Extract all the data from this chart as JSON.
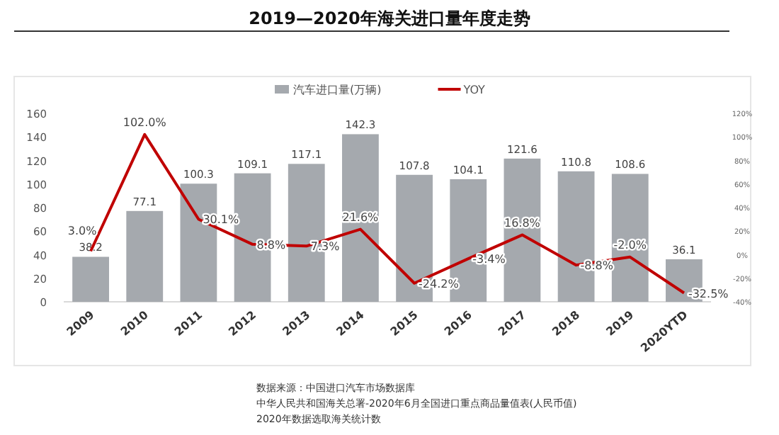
{
  "chart_data": {
    "type": "bar",
    "title": "2019—2020年海关进口量年度走势",
    "categories": [
      "2009",
      "2010",
      "2011",
      "2012",
      "2013",
      "2014",
      "2015",
      "2016",
      "2017",
      "2018",
      "2019",
      "2020YTD"
    ],
    "series": [
      {
        "name": "汽车进口量(万辆)",
        "type": "bar",
        "color": "#a5a9ae",
        "values": [
          38.2,
          77.1,
          100.3,
          109.1,
          117.1,
          142.3,
          107.8,
          104.1,
          121.6,
          110.8,
          108.6,
          36.1
        ],
        "value_labels": [
          "38.2",
          "77.1",
          "100.3",
          "109.1",
          "117.1",
          "142.3",
          "107.8",
          "104.1",
          "121.6",
          "110.8",
          "108.6",
          "36.1"
        ]
      },
      {
        "name": "YOY",
        "type": "line",
        "axis": "y2",
        "color": "#c00000",
        "values": [
          3.0,
          102.0,
          30.1,
          8.8,
          7.3,
          21.6,
          -24.2,
          -3.4,
          16.8,
          -8.8,
          -2.0,
          -32.5
        ],
        "value_labels": [
          "3.0%",
          "102.0%",
          "30.1%",
          "8.8%",
          "7.3%",
          "21.6%",
          "-24.2%",
          "-3.4%",
          "16.8%",
          "-8.8%",
          "-2.0%",
          "-32.5%"
        ]
      }
    ],
    "ylim": [
      0,
      160
    ],
    "yticks": [
      0,
      20,
      40,
      60,
      80,
      100,
      120,
      140,
      160
    ],
    "y2lim": [
      -40,
      120
    ],
    "y2ticks": [
      {
        "value": -40,
        "label": "-40%"
      },
      {
        "value": -20,
        "label": "-20%"
      },
      {
        "value": 0,
        "label": "0%"
      },
      {
        "value": 20,
        "label": "20%"
      },
      {
        "value": 40,
        "label": "40%"
      },
      {
        "value": 60,
        "label": "60%"
      },
      {
        "value": 80,
        "label": "80%"
      },
      {
        "value": 100,
        "label": "100%"
      },
      {
        "value": 120,
        "label": "120%"
      }
    ],
    "legend": "top",
    "grid": false,
    "annotations": [
      "数据来源：中国进口汽车市场数据库",
      "中华人民共和国海关总署-2020年6月全国进口重点商品量值表(人民币值)",
      "2020年数据选取海关统计数"
    ]
  }
}
